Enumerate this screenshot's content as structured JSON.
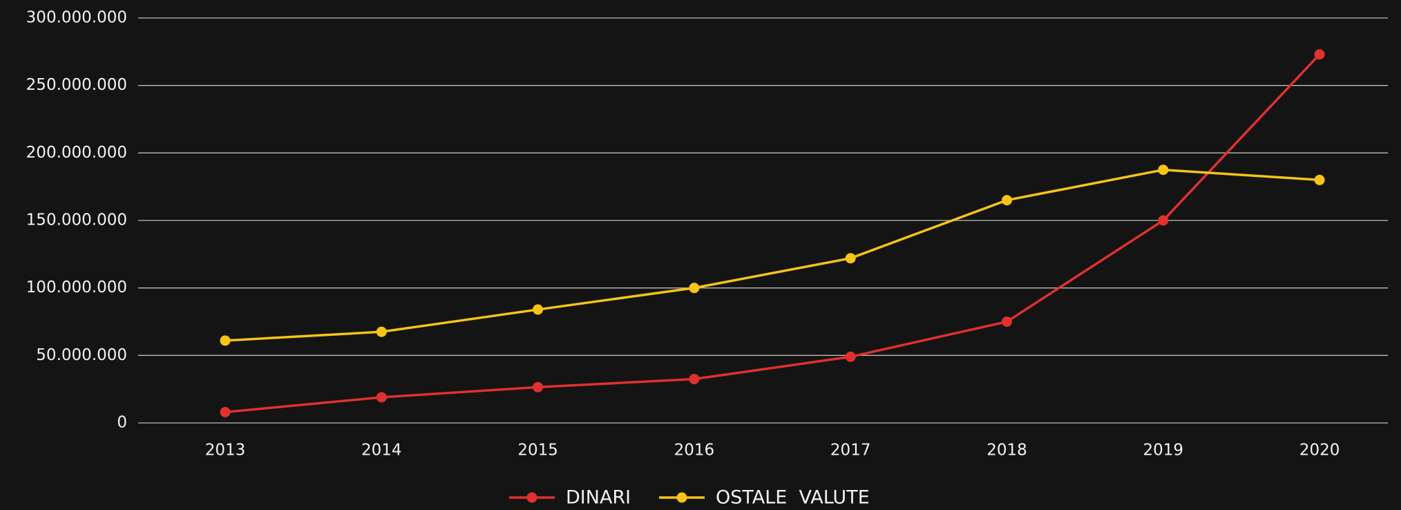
{
  "chart_data": {
    "type": "line",
    "categories": [
      "2013",
      "2014",
      "2015",
      "2016",
      "2017",
      "2018",
      "2019",
      "2020"
    ],
    "series": [
      {
        "name": "DINARI",
        "color": "#e0312f",
        "values": [
          8000000,
          19000000,
          26500000,
          32500000,
          49000000,
          75000000,
          150000000,
          273000000
        ]
      },
      {
        "name": "OSTALE  VALUTE",
        "color": "#f7c417",
        "values": [
          61000000,
          67500000,
          84000000,
          100000000,
          122000000,
          165000000,
          187500000,
          180000000
        ]
      }
    ],
    "ylim": [
      0,
      300000000
    ],
    "yticks": [
      0,
      {
        "value": 50000000,
        "label": "50.000.000"
      },
      {
        "value": 100000000,
        "label": "100.000.000"
      },
      {
        "value": 150000000,
        "label": "150.000.000"
      },
      {
        "value": 200000000,
        "label": "200.000.000"
      },
      {
        "value": 250000000,
        "label": "250.000.000"
      },
      {
        "value": 300000000,
        "label": "300.000.000"
      }
    ],
    "grid": true,
    "legend": "bottom"
  }
}
